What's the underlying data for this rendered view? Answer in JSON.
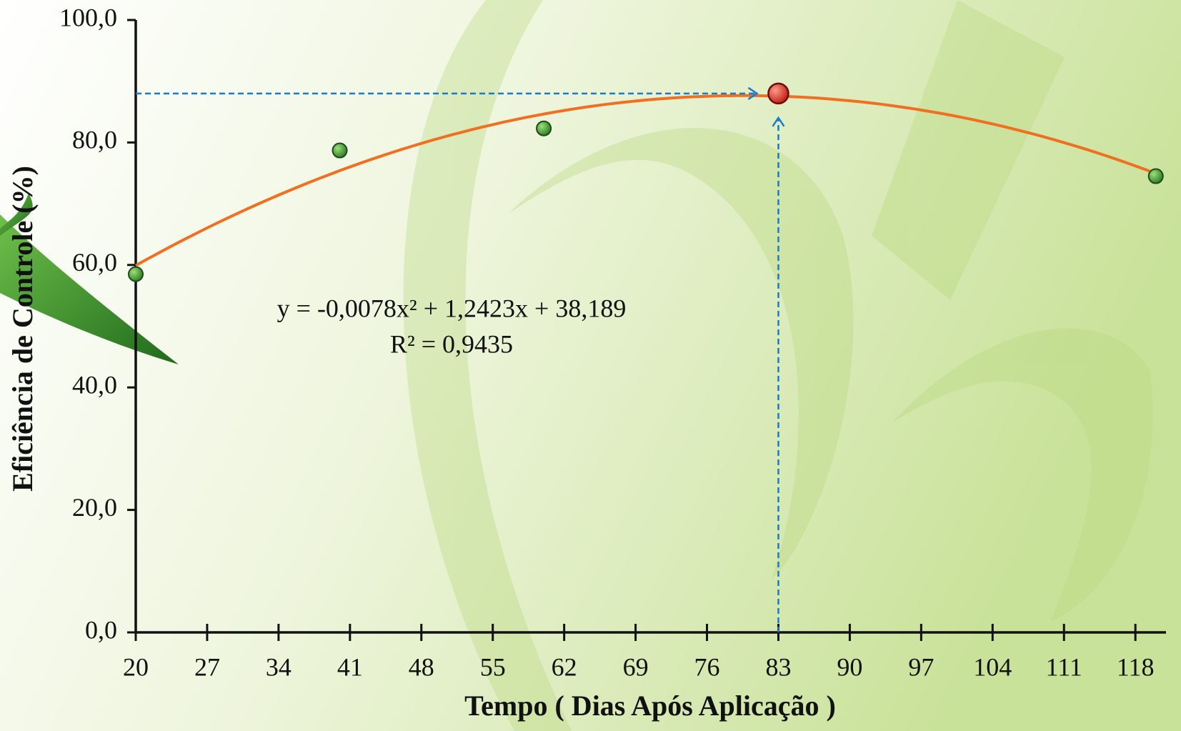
{
  "chart_data": {
    "type": "scatter",
    "x_label": "Tempo ( Dias Após Aplicação )",
    "y_label": "Eficiência de Controle (%)",
    "x": [
      20,
      40,
      60,
      120
    ],
    "values": [
      58.5,
      78.7,
      82.3,
      74.5
    ],
    "color": "#3a9a2e",
    "xlim": [
      20,
      121
    ],
    "ylim": [
      0,
      100
    ],
    "xticks": [
      20,
      27,
      34,
      41,
      48,
      55,
      62,
      69,
      76,
      83,
      90,
      97,
      104,
      111,
      118
    ],
    "yticks": [
      {
        "value": 0,
        "label": "0,0"
      },
      {
        "value": 20,
        "label": "20,0"
      },
      {
        "value": 40,
        "label": "40,0"
      },
      {
        "value": 60,
        "label": "60,0"
      },
      {
        "value": 80,
        "label": "80,0"
      },
      {
        "value": 100,
        "label": "100,0"
      }
    ],
    "trendline": {
      "coefficients": [
        -0.0078,
        1.2423,
        38.189
      ],
      "color": "#f07020",
      "equation": "y = -0,0078x² + 1,2423x + 38,189",
      "r_squared": "R² = 0,9435"
    },
    "highlight": {
      "x": 83,
      "y": 88,
      "color": "#d62a20",
      "guide_color": "#1a7ad0"
    }
  }
}
